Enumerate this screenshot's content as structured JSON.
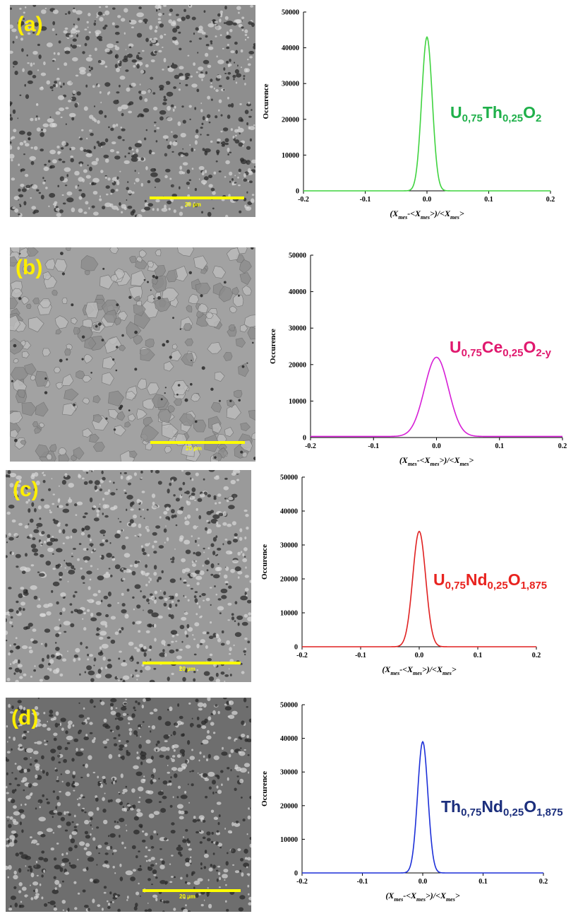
{
  "panels": [
    {
      "label": "(a)",
      "scale_text": "20 µm",
      "formula": [
        {
          "t": "U",
          "sub": false
        },
        {
          "t": "0,75",
          "sub": true
        },
        {
          "t": "Th",
          "sub": false
        },
        {
          "t": "0,25",
          "sub": true
        },
        {
          "t": "O",
          "sub": false
        },
        {
          "t": "2",
          "sub": true
        }
      ],
      "formula_color": "#1fb04a",
      "sem_tone": "#8e8e8e"
    },
    {
      "label": "(b)",
      "scale_text": "20 µm",
      "formula": [
        {
          "t": "U",
          "sub": false
        },
        {
          "t": "0,75",
          "sub": true
        },
        {
          "t": "Ce",
          "sub": false
        },
        {
          "t": "0,25",
          "sub": true
        },
        {
          "t": "O",
          "sub": false
        },
        {
          "t": "2-y",
          "sub": true
        }
      ],
      "formula_color": "#e0186e",
      "sem_tone": "#a2a2a2"
    },
    {
      "label": "(c)",
      "scale_text": "20 µm",
      "formula": [
        {
          "t": "U",
          "sub": false
        },
        {
          "t": "0,75",
          "sub": true
        },
        {
          "t": "Nd",
          "sub": false
        },
        {
          "t": "0,25",
          "sub": true
        },
        {
          "t": "O",
          "sub": false
        },
        {
          "t": "1,875",
          "sub": true
        }
      ],
      "formula_color": "#e8231f",
      "sem_tone": "#9a9a9a"
    },
    {
      "label": "(d)",
      "scale_text": "20 µm",
      "formula": [
        {
          "t": "Th",
          "sub": false
        },
        {
          "t": "0,75",
          "sub": true
        },
        {
          "t": "Nd",
          "sub": false
        },
        {
          "t": "0,25",
          "sub": true
        },
        {
          "t": "O",
          "sub": false
        },
        {
          "t": "1,875",
          "sub": true
        }
      ],
      "formula_color": "#1b2e7c",
      "sem_tone": "#6e6e6e"
    }
  ],
  "chart_data": [
    {
      "type": "line",
      "ylabel": "Occurence",
      "xlabel_parts": [
        "(X",
        "mes",
        "-<X",
        "mes",
        ">)/<X",
        "mes",
        ">"
      ],
      "xlim": [
        -0.2,
        0.2
      ],
      "ylim": [
        0,
        50000
      ],
      "xticks": [
        "-0.2",
        "-0.1",
        "0.0",
        "0.1",
        "0.2"
      ],
      "yticks": [
        "0",
        "10000",
        "20000",
        "30000",
        "40000",
        "50000"
      ],
      "series": [
        {
          "color": "#3fd33f",
          "peak_x": 0.0,
          "peak_y": 43000,
          "sigma": 0.0085,
          "baseline": 0
        }
      ]
    },
    {
      "type": "line",
      "ylabel": "Occurence",
      "xlabel_parts": [
        "(X",
        "mes",
        "-<X",
        "mes",
        ">)/<X",
        "mes",
        ">"
      ],
      "xlim": [
        -0.2,
        0.2
      ],
      "ylim": [
        0,
        50000
      ],
      "xticks": [
        "-0.2",
        "-0.1",
        "0.0",
        "0.1",
        "0.2"
      ],
      "yticks": [
        "0",
        "10000",
        "20000",
        "30000",
        "40000",
        "50000"
      ],
      "series": [
        {
          "color": "#d61ed6",
          "peak_x": 0.0,
          "peak_y": 22000,
          "sigma": 0.019,
          "baseline": 300
        }
      ]
    },
    {
      "type": "line",
      "ylabel": "Occurence",
      "xlabel_parts": [
        "(X",
        "mes",
        "-<X",
        "mes",
        ">)/<X",
        "mes",
        ">"
      ],
      "xlim": [
        -0.2,
        0.2
      ],
      "ylim": [
        0,
        50000
      ],
      "xticks": [
        "-0.2",
        "-0.1",
        "0.0",
        "0.1",
        "0.2"
      ],
      "yticks": [
        "0",
        "10000",
        "20000",
        "30000",
        "40000",
        "50000"
      ],
      "series": [
        {
          "color": "#e02020",
          "peak_x": 0.0,
          "peak_y": 34000,
          "sigma": 0.011,
          "baseline": 0
        }
      ]
    },
    {
      "type": "line",
      "ylabel": "Occurence",
      "xlabel_parts": [
        "(X",
        "mes",
        "-<X",
        "mes",
        ">)/<X",
        "mes",
        ">"
      ],
      "xlim": [
        -0.2,
        0.2
      ],
      "ylim": [
        0,
        50000
      ],
      "xticks": [
        "-0.2",
        "-0.1",
        "0.0",
        "0.1",
        "0.2"
      ],
      "yticks": [
        "0",
        "10000",
        "20000",
        "30000",
        "40000",
        "50000"
      ],
      "series": [
        {
          "color": "#1c2fd8",
          "peak_x": 0.0,
          "peak_y": 39000,
          "sigma": 0.0085,
          "baseline": 0
        }
      ]
    }
  ]
}
